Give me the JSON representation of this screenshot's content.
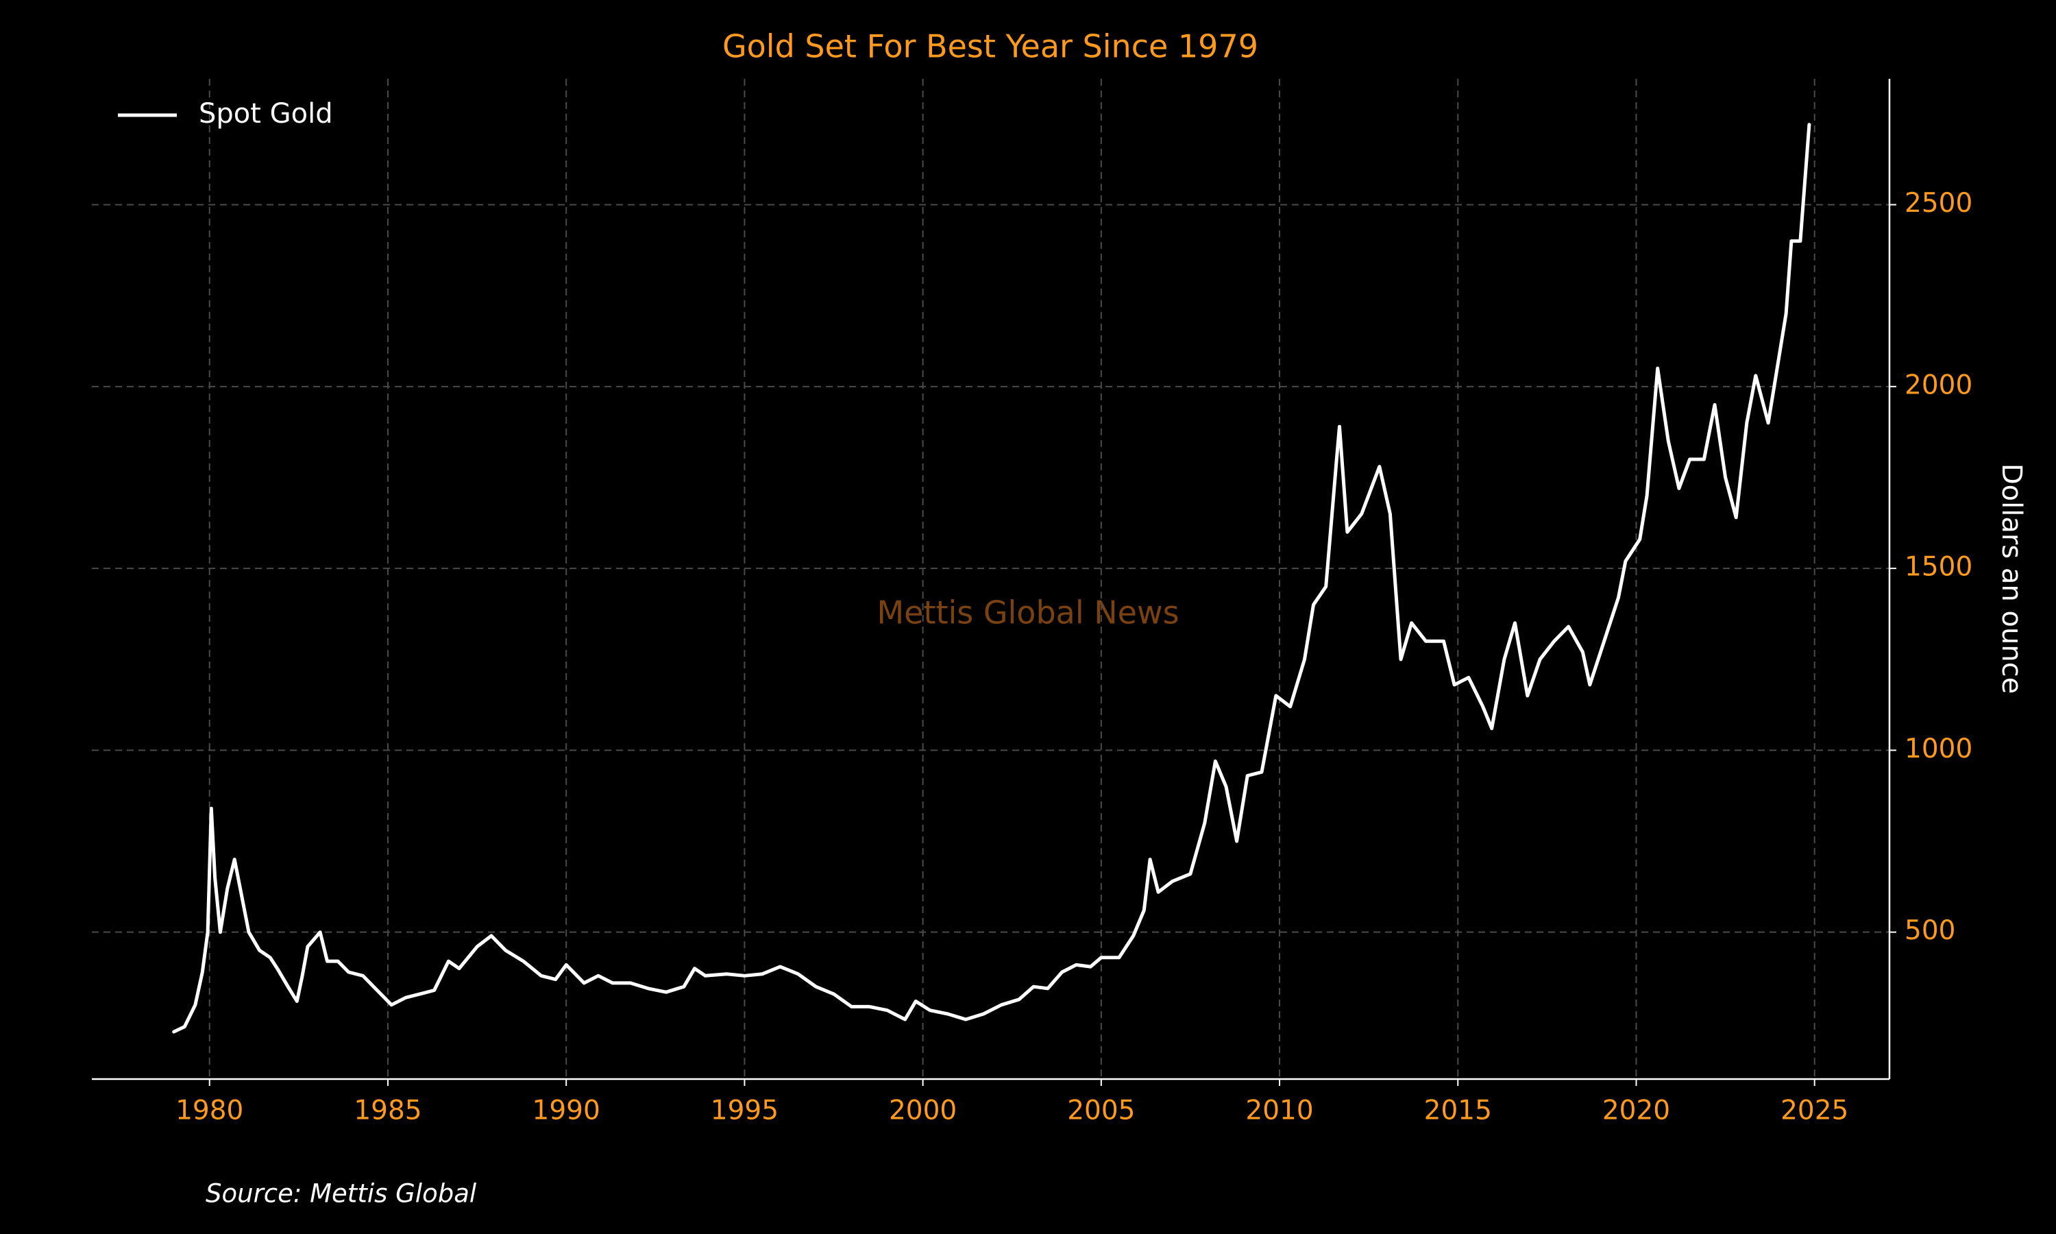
{
  "chart_data": {
    "type": "line",
    "title": "Gold Set For Best Year Since 1979",
    "y_label": "Dollars an ounce",
    "watermark": "Mettis Global News",
    "source": "Source: Mettis Global",
    "legend": "upper left",
    "grid": true,
    "y_axis_side": "right",
    "x": [
      1979.0,
      1979.3,
      1979.6,
      1979.8,
      1979.95,
      1980.05,
      1980.15,
      1980.3,
      1980.5,
      1980.7,
      1980.9,
      1981.1,
      1981.4,
      1981.7,
      1981.9,
      1982.2,
      1982.45,
      1982.6,
      1982.75,
      1983.1,
      1983.3,
      1983.6,
      1983.9,
      1984.3,
      1984.7,
      1985.1,
      1985.5,
      1985.9,
      1986.3,
      1986.7,
      1987.0,
      1987.5,
      1987.9,
      1988.3,
      1988.8,
      1989.3,
      1989.7,
      1990.0,
      1990.5,
      1990.9,
      1991.3,
      1991.8,
      1992.3,
      1992.8,
      1993.3,
      1993.6,
      1993.9,
      1994.5,
      1995.0,
      1995.5,
      1996.0,
      1996.5,
      1997.0,
      1997.5,
      1998.0,
      1998.5,
      1999.0,
      1999.5,
      1999.8,
      2000.2,
      2000.7,
      2001.2,
      2001.7,
      2002.2,
      2002.7,
      2003.1,
      2003.5,
      2003.9,
      2004.3,
      2004.7,
      2005.0,
      2005.5,
      2005.9,
      2006.2,
      2006.37,
      2006.6,
      2007.0,
      2007.5,
      2007.9,
      2008.2,
      2008.5,
      2008.8,
      2009.1,
      2009.5,
      2009.9,
      2010.3,
      2010.7,
      2010.95,
      2011.3,
      2011.6,
      2011.68,
      2011.9,
      2012.3,
      2012.8,
      2013.1,
      2013.4,
      2013.7,
      2014.1,
      2014.6,
      2014.9,
      2015.3,
      2015.7,
      2015.95,
      2016.3,
      2016.6,
      2016.95,
      2017.3,
      2017.7,
      2018.1,
      2018.5,
      2018.7,
      2019.1,
      2019.5,
      2019.7,
      2020.1,
      2020.3,
      2020.6,
      2020.9,
      2021.2,
      2021.5,
      2021.9,
      2022.2,
      2022.5,
      2022.8,
      2023.1,
      2023.35,
      2023.7,
      2023.95,
      2024.2,
      2024.35,
      2024.6,
      2024.85
    ],
    "series": [
      {
        "name": "Spot Gold",
        "color": "#ffffff",
        "values": [
          226,
          240,
          300,
          390,
          500,
          840,
          650,
          500,
          620,
          700,
          600,
          500,
          450,
          430,
          400,
          350,
          310,
          380,
          460,
          500,
          420,
          420,
          390,
          380,
          340,
          300,
          320,
          330,
          340,
          420,
          400,
          460,
          490,
          450,
          420,
          380,
          370,
          410,
          360,
          380,
          360,
          360,
          345,
          335,
          350,
          400,
          380,
          385,
          380,
          385,
          405,
          385,
          350,
          330,
          295,
          295,
          285,
          260,
          310,
          285,
          275,
          260,
          275,
          300,
          315,
          350,
          345,
          390,
          410,
          405,
          430,
          430,
          490,
          560,
          700,
          610,
          640,
          660,
          800,
          970,
          900,
          750,
          930,
          940,
          1150,
          1120,
          1250,
          1400,
          1450,
          1800,
          1890,
          1600,
          1650,
          1780,
          1650,
          1250,
          1350,
          1300,
          1300,
          1180,
          1200,
          1120,
          1060,
          1250,
          1350,
          1150,
          1250,
          1300,
          1340,
          1270,
          1180,
          1300,
          1420,
          1520,
          1580,
          1700,
          2050,
          1850,
          1720,
          1800,
          1800,
          1950,
          1750,
          1640,
          1900,
          2030,
          1900,
          2050,
          2200,
          2400,
          2400,
          2720
        ]
      }
    ],
    "xlim": [
      1976.7,
      2027.1
    ],
    "xticks": [
      1980,
      1985,
      1990,
      1995,
      2000,
      2005,
      2010,
      2015,
      2020,
      2025
    ],
    "ylim": [
      96,
      2846
    ],
    "yticks": [
      500,
      1000,
      1500,
      2000,
      2500
    ]
  }
}
